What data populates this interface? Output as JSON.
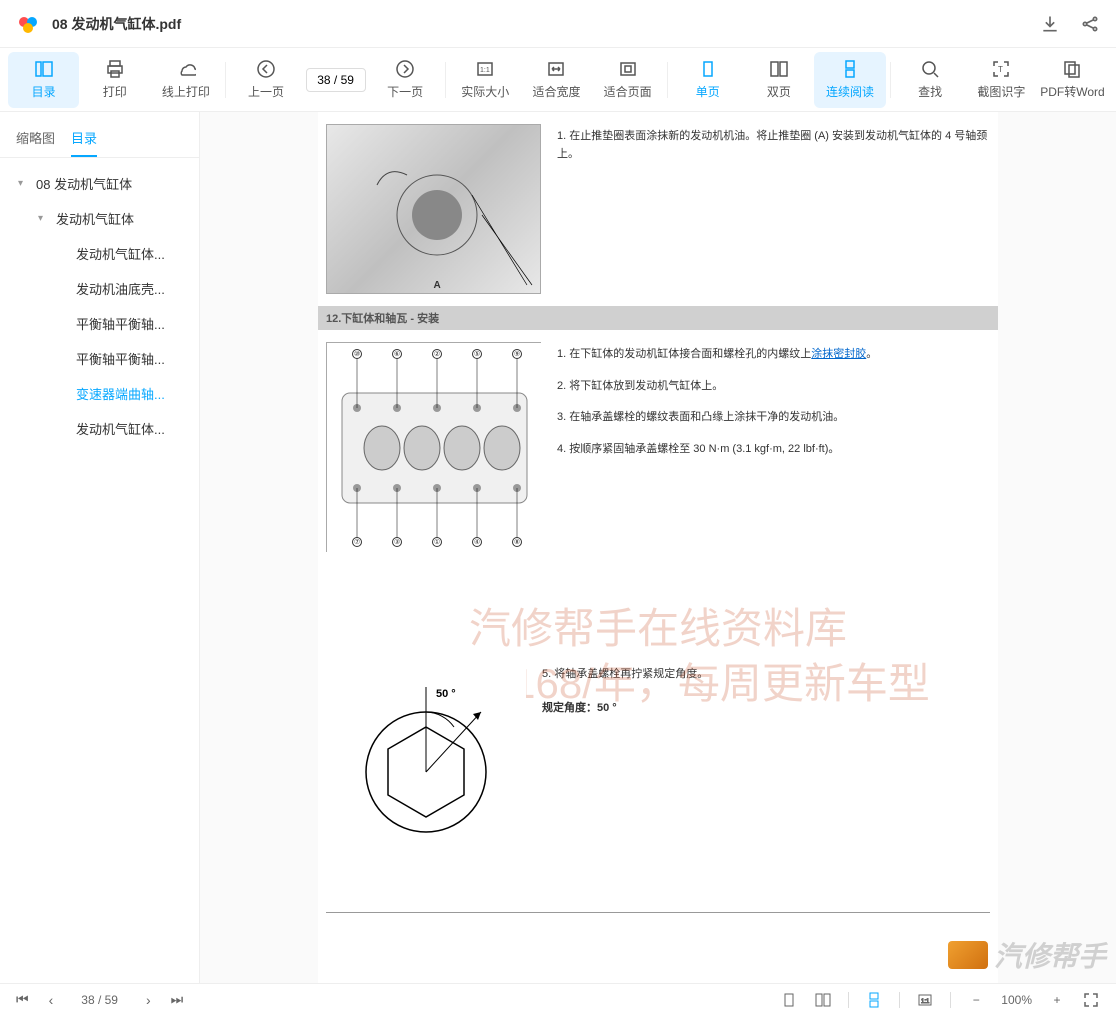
{
  "header": {
    "filename": "08 发动机气缸体.pdf"
  },
  "toolbar": {
    "items": [
      {
        "id": "toc",
        "label": "目录",
        "active": true
      },
      {
        "id": "print",
        "label": "打印"
      },
      {
        "id": "cloud-print",
        "label": "线上打印"
      },
      {
        "id": "sep"
      },
      {
        "id": "prev",
        "label": "上一页"
      },
      {
        "id": "page-input"
      },
      {
        "id": "next",
        "label": "下一页"
      },
      {
        "id": "sep"
      },
      {
        "id": "actual",
        "label": "实际大小"
      },
      {
        "id": "fit-width",
        "label": "适合宽度"
      },
      {
        "id": "fit-page",
        "label": "适合页面"
      },
      {
        "id": "sep"
      },
      {
        "id": "single",
        "label": "单页",
        "highlight": true
      },
      {
        "id": "double",
        "label": "双页"
      },
      {
        "id": "continuous",
        "label": "连续阅读",
        "active": true,
        "highlight": true
      },
      {
        "id": "sep"
      },
      {
        "id": "search",
        "label": "查找"
      },
      {
        "id": "ocr",
        "label": "截图识字"
      },
      {
        "id": "convert",
        "label": "PDF转Word"
      }
    ],
    "page_current": "38",
    "page_total": "/ 59"
  },
  "sidebar": {
    "tabs": [
      {
        "label": "缩略图",
        "active": false
      },
      {
        "label": "目录",
        "active": true
      }
    ],
    "tree": [
      {
        "label": "08 发动机气缸体",
        "level": 0,
        "caret": "▾"
      },
      {
        "label": "发动机气缸体",
        "level": 1,
        "caret": "▾"
      },
      {
        "label": "发动机气缸体...",
        "level": 2
      },
      {
        "label": "发动机油底壳...",
        "level": 2
      },
      {
        "label": "平衡轴平衡轴...",
        "level": 2
      },
      {
        "label": "平衡轴平衡轴...",
        "level": 2
      },
      {
        "label": "变速器端曲轴...",
        "level": 2,
        "selected": true
      },
      {
        "label": "发动机气缸体...",
        "level": 2
      }
    ]
  },
  "document": {
    "step1": {
      "num": "1.",
      "text": "在止推垫圈表面涂抹新的发动机机油。将止推垫圈 (A) 安装到发动机气缸体的 4 号轴颈上。"
    },
    "section_title": "12.下缸体和轴瓦 - 安装",
    "steps2": [
      {
        "num": "1.",
        "text": "在下缸体的发动机缸体接合面和螺栓孔的内螺纹上",
        "link": "涂抹密封胶",
        "suffix": "。"
      },
      {
        "num": "2.",
        "text": "将下缸体放到发动机气缸体上。"
      },
      {
        "num": "3.",
        "text": "在轴承盖螺栓的螺纹表面和凸缘上涂抹干净的发动机油。"
      },
      {
        "num": "4.",
        "text": "按顺序紧固轴承盖螺栓至 30 N·m (3.1 kgf·m, 22 lbf·ft)。"
      }
    ],
    "step5": {
      "num": "5.",
      "text": "将轴承盖螺栓再拧紧规定角度。"
    },
    "angle_label": "规定角度：",
    "angle_value": "50 °",
    "diagram_angle": "50 °",
    "watermark_line1": "汽修帮手在线资料库",
    "watermark_line2": "会员仅168/年，每周更新车型",
    "annotation_a": "A"
  },
  "footer": {
    "page": "38 / 59",
    "brand": "汽修帮手",
    "zoom_value": "100%"
  }
}
